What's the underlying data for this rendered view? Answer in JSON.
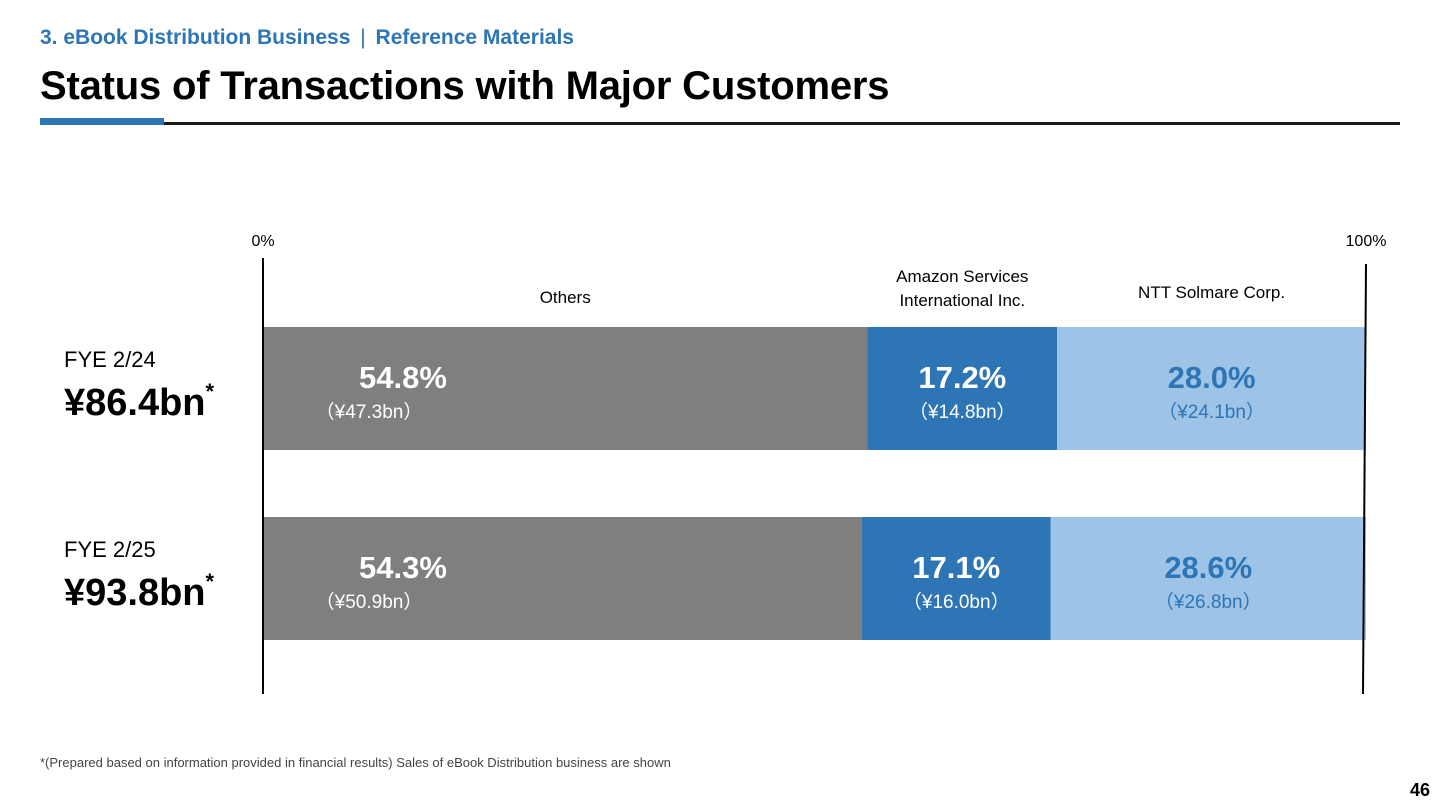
{
  "header": {
    "section": "3. eBook Distribution Business",
    "separator": "|",
    "subsection": "Reference Materials",
    "title": "Status of Transactions with Major Customers"
  },
  "footnote": "*(Prepared based on information provided in financial results) Sales of eBook Distribution business are shown",
  "page_number": "46",
  "colors": {
    "others": "#7f7f7f",
    "amazon": "#2e75b6",
    "ntt": "#9dc3e6",
    "accent": "#2e75b6"
  },
  "chart_data": {
    "type": "bar",
    "orientation": "horizontal",
    "stacked": true,
    "axis_min_label": "0%",
    "axis_max_label": "100%",
    "xlim": [
      0,
      100
    ],
    "series": [
      {
        "name": "Others",
        "header_lines": [
          "Others"
        ],
        "values": [
          54.8,
          54.3
        ],
        "value_labels": [
          "54.8%",
          "54.3%"
        ],
        "amount_labels": [
          "（¥47.3bn）",
          "（¥50.9bn）"
        ]
      },
      {
        "name": "Amazon Services International Inc.",
        "header_lines": [
          "Amazon Services",
          "International Inc."
        ],
        "values": [
          17.2,
          17.1
        ],
        "value_labels": [
          "17.2%",
          "17.1%"
        ],
        "amount_labels": [
          "（¥14.8bn）",
          "（¥16.0bn）"
        ]
      },
      {
        "name": "NTT Solmare Corp.",
        "header_lines": [
          "NTT Solmare Corp."
        ],
        "values": [
          28.0,
          28.6
        ],
        "value_labels": [
          "28.0%",
          "28.6%"
        ],
        "amount_labels": [
          "（¥24.1bn）",
          "（¥26.8bn）"
        ]
      }
    ],
    "categories": [
      {
        "label": "FYE 2/24",
        "total": "¥86.4bn",
        "mark": "*"
      },
      {
        "label": "FYE 2/25",
        "total": "¥93.8bn",
        "mark": "*"
      }
    ]
  }
}
